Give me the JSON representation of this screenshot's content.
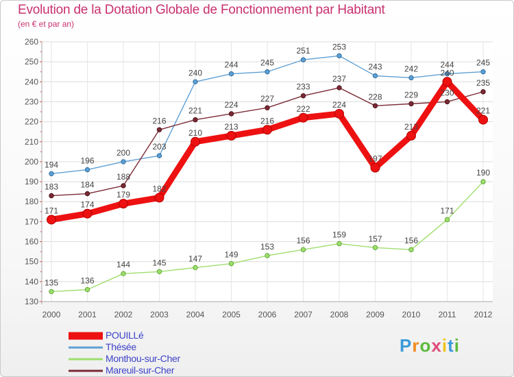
{
  "title": "Evolution de la Dotation Globale de Fonctionnement par Habitant",
  "subtitle": "(en € et par an)",
  "chart_data": {
    "type": "line",
    "title": "Evolution de la Dotation Globale de Fonctionnement par Habitant",
    "subtitle": "(en € et par an)",
    "xlabel": "",
    "ylabel": "",
    "x": [
      "2000",
      "2001",
      "2002",
      "2003",
      "2004",
      "2005",
      "2006",
      "2007",
      "2008",
      "2009",
      "2010",
      "2011",
      "2012"
    ],
    "ylim": [
      130,
      260
    ],
    "yticks": [
      130,
      140,
      150,
      160,
      170,
      180,
      190,
      200,
      210,
      220,
      230,
      240,
      250,
      260
    ],
    "grid": true,
    "legend_position": "bottom-left",
    "series": [
      {
        "name": "Thésée",
        "color": "#5e9fd3",
        "values": [
          194,
          196,
          200,
          203,
          240,
          244,
          245,
          251,
          253,
          243,
          242,
          244,
          245
        ]
      },
      {
        "name": "Mareuil-sur-Cher",
        "color": "#7b2a35",
        "values": [
          183,
          184,
          188,
          216,
          221,
          224,
          227,
          233,
          237,
          228,
          229,
          230,
          235
        ]
      },
      {
        "name": "Monthou-sur-Cher",
        "color": "#9fde6e",
        "values": [
          135,
          136,
          144,
          145,
          147,
          149,
          153,
          156,
          159,
          157,
          156,
          171,
          190
        ]
      },
      {
        "name": "POUILLé",
        "color": "#ee1111",
        "values": [
          171,
          174,
          179,
          182,
          210,
          213,
          216,
          222,
          224,
          197,
          213,
          240,
          221
        ]
      }
    ]
  },
  "legend": [
    {
      "name": "POUILLé",
      "color": "#ee1111"
    },
    {
      "name": "Thésée",
      "color": "#5e9fd3"
    },
    {
      "name": "Monthou-sur-Cher",
      "color": "#9fde6e"
    },
    {
      "name": "Mareuil-sur-Cher",
      "color": "#7b2a35"
    }
  ],
  "brand": {
    "letters": [
      "P",
      "r",
      "o",
      "x",
      "i",
      "t",
      "i"
    ],
    "colors": [
      "#3a9ad9",
      "#f08a1c",
      "#5bbb3d",
      "#e04a7a",
      "#f0c419",
      "#3a9ad9",
      "#5bbb3d"
    ]
  }
}
